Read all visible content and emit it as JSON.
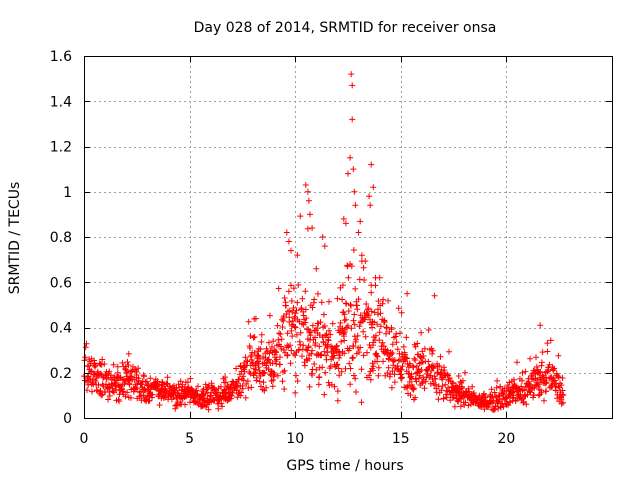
{
  "chart_data": {
    "type": "scatter",
    "title": "Day 028 of 2014, SRMTID for receiver onsa",
    "xlabel": "GPS time / hours",
    "ylabel": "SRMTID / TECUs",
    "xlim": [
      0,
      25
    ],
    "ylim": [
      0,
      1.6
    ],
    "x_ticks": [
      0,
      5,
      10,
      15,
      20
    ],
    "y_ticks": [
      0,
      0.2,
      0.4,
      0.6,
      0.8,
      1,
      1.2,
      1.4,
      1.6
    ],
    "x_tick_labels": [
      "0",
      "5",
      "10",
      "15",
      "20"
    ],
    "y_tick_labels": [
      "0",
      "0.2",
      "0.4",
      "0.6",
      "0.8",
      "1",
      "1.2",
      "1.4",
      "1.6"
    ],
    "grid": true,
    "marker": "+",
    "color": "#ff0000",
    "series": [
      {
        "name": "onsa",
        "profile_hours": [
          0,
          0.3,
          0.6,
          1,
          1.5,
          2,
          2.5,
          3,
          3.5,
          4,
          4.5,
          5,
          5.5,
          6,
          6.5,
          7,
          7.5,
          8,
          8.5,
          9,
          9.5,
          10,
          10.5,
          11,
          11.5,
          12,
          12.5,
          13,
          13.5,
          14,
          14.5,
          15,
          15.5,
          16,
          16.5,
          17,
          17.5,
          18,
          18.5,
          19,
          19.5,
          20,
          20.5,
          21,
          21.5,
          22,
          22.5,
          22.7
        ],
        "profile_median": [
          0.22,
          0.2,
          0.17,
          0.16,
          0.15,
          0.16,
          0.14,
          0.13,
          0.12,
          0.11,
          0.1,
          0.1,
          0.09,
          0.09,
          0.1,
          0.13,
          0.18,
          0.25,
          0.22,
          0.24,
          0.35,
          0.38,
          0.4,
          0.32,
          0.28,
          0.3,
          0.4,
          0.42,
          0.4,
          0.38,
          0.3,
          0.25,
          0.2,
          0.22,
          0.2,
          0.15,
          0.12,
          0.1,
          0.08,
          0.07,
          0.08,
          0.1,
          0.12,
          0.13,
          0.16,
          0.18,
          0.14,
          0.1
        ],
        "profile_spread": [
          0.07,
          0.06,
          0.05,
          0.05,
          0.05,
          0.05,
          0.04,
          0.04,
          0.03,
          0.03,
          0.03,
          0.03,
          0.03,
          0.03,
          0.03,
          0.04,
          0.06,
          0.08,
          0.07,
          0.08,
          0.12,
          0.15,
          0.16,
          0.12,
          0.1,
          0.12,
          0.18,
          0.2,
          0.15,
          0.12,
          0.1,
          0.08,
          0.07,
          0.08,
          0.06,
          0.05,
          0.04,
          0.03,
          0.02,
          0.02,
          0.03,
          0.03,
          0.04,
          0.04,
          0.05,
          0.05,
          0.04,
          0.03
        ],
        "peaks": [
          [
            9.6,
            0.82
          ],
          [
            9.7,
            0.78
          ],
          [
            9.8,
            0.74
          ],
          [
            10.1,
            0.72
          ],
          [
            10.5,
            1.03
          ],
          [
            10.6,
            1.0
          ],
          [
            10.65,
            0.96
          ],
          [
            10.7,
            0.9
          ],
          [
            10.8,
            0.84
          ],
          [
            11.0,
            0.66
          ],
          [
            11.3,
            0.8
          ],
          [
            11.4,
            0.76
          ],
          [
            12.3,
            0.88
          ],
          [
            12.4,
            0.86
          ],
          [
            12.5,
            1.08
          ],
          [
            12.6,
            1.15
          ],
          [
            12.65,
            1.52
          ],
          [
            12.7,
            1.47
          ],
          [
            12.7,
            1.32
          ],
          [
            12.75,
            1.1
          ],
          [
            12.8,
            1.0
          ],
          [
            12.85,
            0.94
          ],
          [
            13.0,
            0.82
          ],
          [
            13.5,
            0.98
          ],
          [
            13.55,
            0.94
          ],
          [
            13.6,
            1.12
          ],
          [
            13.7,
            1.02
          ],
          [
            13.8,
            0.62
          ],
          [
            14.0,
            0.62
          ],
          [
            15.3,
            0.55
          ],
          [
            16.6,
            0.54
          ],
          [
            21.6,
            0.41
          ]
        ]
      }
    ]
  }
}
